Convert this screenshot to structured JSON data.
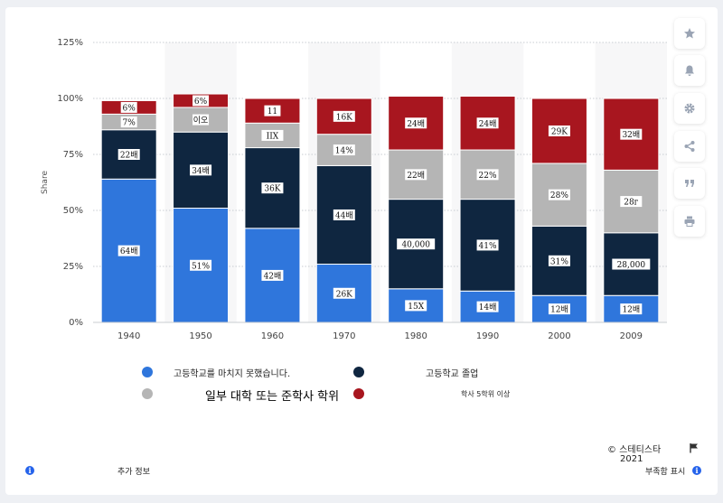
{
  "chart_data": {
    "type": "bar",
    "stacked": true,
    "categories": [
      "1940",
      "1950",
      "1960",
      "1970",
      "1980",
      "1990",
      "2000",
      "2009"
    ],
    "ylabel": "Share",
    "ylim": [
      0,
      125
    ],
    "yticks": [
      "0%",
      "25%",
      "50%",
      "75%",
      "100%",
      "125%"
    ],
    "series": [
      {
        "name": "고등학교를 마치지 못했습니다.",
        "color": "#2f76dc",
        "values": [
          64,
          51,
          42,
          26,
          15,
          14,
          12,
          12
        ],
        "labels": [
          "64배",
          "51%",
          "42배",
          "26K",
          "15X",
          "14배",
          "12배",
          "12배"
        ]
      },
      {
        "name": "고등학교 졸업",
        "color": "#0f2640",
        "values": [
          22,
          34,
          36,
          44,
          40,
          41,
          31,
          28
        ],
        "labels": [
          "22배",
          "34배",
          "36K",
          "44배",
          "40,000",
          "41%",
          "31%",
          "28,000"
        ]
      },
      {
        "name": "일부 대학 또는 준학사 학위",
        "color": "#b5b5b5",
        "values": [
          7,
          11,
          11,
          14,
          22,
          22,
          28,
          28
        ],
        "labels": [
          "7%",
          "이오",
          "IIX",
          "14%",
          "22배",
          "22%",
          "28%",
          "28г"
        ]
      },
      {
        "name": "학사 5학위 이상",
        "color": "#a8161f",
        "values": [
          6,
          6,
          11,
          16,
          24,
          24,
          29,
          32
        ],
        "labels": [
          "6%",
          "6%",
          "11",
          "16K",
          "24배",
          "24배",
          "29K",
          "32배"
        ]
      }
    ]
  },
  "footer": {
    "source": "© 스테티스타",
    "year": "2021",
    "more_info": "추가 정보",
    "report": "부족함 표시"
  },
  "sidebar_icons": [
    "star-icon",
    "bell-icon",
    "gear-icon",
    "share-icon",
    "quote-icon",
    "print-icon"
  ],
  "colors": {
    "accent": "#2563eb"
  }
}
